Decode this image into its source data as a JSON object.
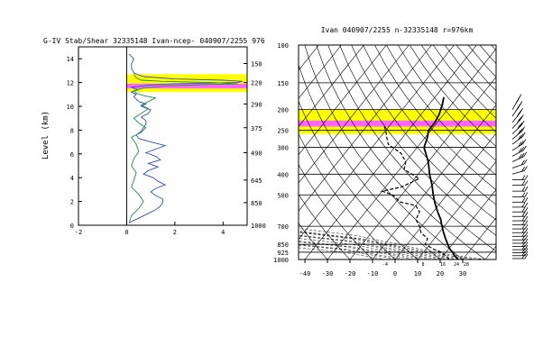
{
  "chart_data": [
    {
      "type": "line",
      "title": "G-IV Stab/Shear 32335148 Ivan-ncep- 040907/2255 976",
      "ylabel": "Level (km)",
      "xlabel": "",
      "xlim": [
        -2,
        5
      ],
      "ylim": [
        0,
        15
      ],
      "xticks": [
        -2,
        0,
        2,
        4
      ],
      "yticks": [
        0,
        2,
        4,
        6,
        8,
        10,
        12,
        14
      ],
      "right_ticks": [
        "150",
        "220",
        "290",
        "375",
        "490",
        "645",
        "850",
        "1000"
      ],
      "right_tick_heights_km": [
        13.6,
        12.0,
        10.2,
        8.2,
        6.1,
        3.8,
        1.9,
        0.0
      ],
      "highlight_bands_km": [
        {
          "from": 11.2,
          "to": 12.7,
          "color": "#ffff00"
        },
        {
          "from": 11.5,
          "to": 11.9,
          "color": "#ff66ff"
        }
      ],
      "colors": {
        "series_blue": "#2a4fbf",
        "series_green": "#1f8f3f",
        "band_yellow": "#ffff00",
        "band_pink": "#ff66ff"
      },
      "series": [
        {
          "color": "#2a4fbf",
          "x": [
            0.1,
            0.3,
            0.6,
            0.9,
            1.2,
            1.4,
            1.5,
            1.5,
            1.2,
            1.0,
            1.2,
            1.6,
            1.3,
            1.1,
            0.7,
            0.9,
            1.3,
            0.9,
            1.4,
            1.2,
            0.8,
            1.2,
            1.6,
            1.0,
            0.5,
            0.4,
            0.6,
            0.7,
            0.8,
            0.8,
            0.6,
            0.9,
            1.0,
            0.6,
            0.8,
            0.5,
            0.4,
            0.3,
            0.4,
            0.2,
            0.3,
            0.5,
            0.3,
            0.2,
            0.6,
            1.0,
            2.0,
            4.6,
            4.8,
            4.0,
            2.0,
            0.7,
            0.3,
            0.2,
            0.2,
            0.3,
            0.1
          ],
          "y": [
            0.2,
            0.4,
            0.7,
            1.0,
            1.3,
            1.6,
            1.9,
            2.2,
            2.5,
            2.8,
            3.1,
            3.4,
            3.7,
            4.0,
            4.3,
            4.6,
            4.9,
            5.2,
            5.5,
            5.8,
            6.1,
            6.4,
            6.7,
            7.0,
            7.3,
            7.6,
            7.9,
            8.2,
            8.5,
            8.8,
            9.1,
            9.4,
            9.7,
            10.0,
            10.2,
            10.4,
            10.6,
            10.8,
            11.0,
            11.2,
            11.3,
            11.4,
            11.5,
            11.6,
            11.7,
            11.8,
            11.9,
            12.0,
            12.1,
            12.2,
            12.3,
            12.5,
            12.8,
            13.2,
            13.6,
            14.0,
            14.4
          ]
        },
        {
          "color": "#1f8f3f",
          "x": [
            0.1,
            0.2,
            0.5,
            0.7,
            0.5,
            0.2,
            0.3,
            0.4,
            0.2,
            0.3,
            0.5,
            0.4,
            0.2,
            0.6,
            0.8,
            0.5,
            0.3,
            0.6,
            0.9,
            0.6,
            0.9,
            1.2,
            0.7,
            0.4,
            0.3,
            0.6,
            1.0,
            1.5,
            3.0,
            4.6,
            3.5,
            1.5,
            0.6,
            0.4,
            0.3
          ],
          "y": [
            0.2,
            0.8,
            1.4,
            2.0,
            2.6,
            3.2,
            3.8,
            4.4,
            5.0,
            5.6,
            6.2,
            6.8,
            7.4,
            7.8,
            8.2,
            8.6,
            9.0,
            9.4,
            9.8,
            10.1,
            10.4,
            10.7,
            10.9,
            11.1,
            11.3,
            11.5,
            11.6,
            11.7,
            11.8,
            11.9,
            12.0,
            12.1,
            12.2,
            12.4,
            12.7
          ]
        }
      ]
    },
    {
      "type": "line",
      "title": "Ivan 040907/2255 n-32335148 r=976km",
      "xlabel": "",
      "ylabel": "",
      "xlim": [
        -40,
        40
      ],
      "xticks": [
        -40,
        -30,
        -20,
        -10,
        0,
        10,
        20,
        30
      ],
      "pressure_levels": [
        100,
        150,
        200,
        250,
        300,
        400,
        500,
        700,
        850,
        925,
        1000
      ],
      "p_range": [
        100,
        1000
      ],
      "log_p": true,
      "highlight_bands_hpa": [
        {
          "from": 200,
          "to": 260,
          "color": "#ffff00"
        },
        {
          "from": 225,
          "to": 240,
          "color": "#ff66ff"
        }
      ],
      "bottom_temp_labels": [
        "-4",
        "8",
        "16",
        "24",
        "28"
      ],
      "series": [
        {
          "style": "solid",
          "p": [
            1000,
            960,
            925,
            900,
            850,
            800,
            750,
            700,
            650,
            600,
            550,
            500,
            450,
            400,
            350,
            300,
            270,
            250,
            230,
            210,
            190,
            175
          ],
          "T": [
            28,
            25,
            23,
            21,
            18,
            15,
            12,
            9,
            6,
            2,
            -2,
            -6,
            -10,
            -15,
            -20,
            -27,
            -29,
            -31,
            -31,
            -32,
            -34,
            -36
          ]
        },
        {
          "style": "dashed",
          "p": [
            1000,
            960,
            925,
            900,
            850,
            800,
            750,
            700,
            650,
            600,
            560,
            540,
            500,
            480,
            460,
            420,
            380,
            350,
            320,
            290,
            270,
            250,
            240
          ],
          "T": [
            24,
            21,
            18,
            14,
            8,
            7,
            2,
            -1,
            -5,
            -6,
            -10,
            -18,
            -24,
            -30,
            -23,
            -18,
            -28,
            -30,
            -35,
            -44,
            -47,
            -50,
            -52
          ]
        }
      ]
    }
  ],
  "wind_barbs_pressures": [
    200,
    215,
    230,
    245,
    260,
    275,
    290,
    310,
    330,
    350,
    375,
    400,
    425,
    450,
    480,
    510,
    540,
    570,
    600,
    630,
    660,
    690,
    720,
    750,
    780,
    810,
    840,
    870,
    900,
    930,
    960,
    990
  ]
}
